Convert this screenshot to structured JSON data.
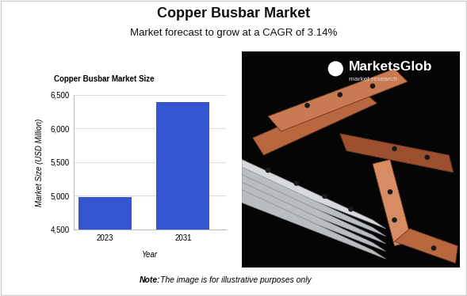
{
  "header": {
    "title": "Copper Busbar Market",
    "subtitle": "Market forecast to grow at a CAGR of 3.14%"
  },
  "chart_data": {
    "type": "bar",
    "title": "Copper Busbar Market Size",
    "x_label": "Year",
    "y_label": "Market Size (USD Million)",
    "categories": [
      "2023",
      "2031"
    ],
    "values": [
      4980,
      6390
    ],
    "color": "#3356d0",
    "ylim": [
      4500,
      6500
    ],
    "yticks": [
      {
        "value": 4500,
        "label": "4,500"
      },
      {
        "value": 5000,
        "label": "5,000"
      },
      {
        "value": 5500,
        "label": "5,500"
      },
      {
        "value": 6000,
        "label": "6,000"
      },
      {
        "value": 6500,
        "label": "6,500"
      }
    ],
    "grid": true
  },
  "image": {
    "logo": "MarketsGlob",
    "logo_tagline": "market research"
  },
  "note": {
    "label": "Note:",
    "text": "The image is for illustrative purposes only"
  }
}
